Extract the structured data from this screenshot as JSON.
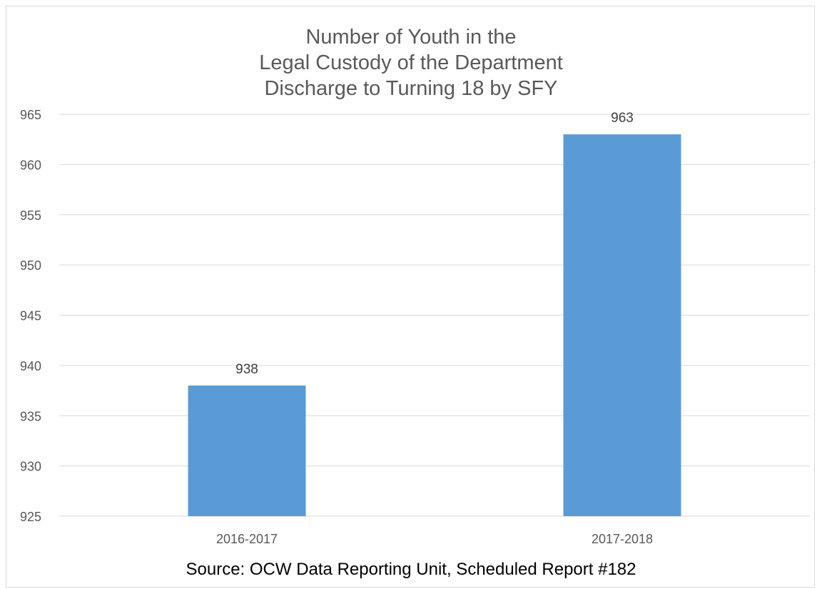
{
  "chart_data": {
    "type": "bar",
    "title": [
      "Number of Youth in the",
      "Legal Custody of the Department",
      "Discharge to Turning 18 by SFY"
    ],
    "categories": [
      "2016-2017",
      "2017-2018"
    ],
    "values": [
      938,
      963
    ],
    "data_labels": [
      "938",
      "963"
    ],
    "ylim": [
      925,
      965
    ],
    "yticks": [
      925,
      930,
      935,
      940,
      945,
      950,
      955,
      960,
      965
    ],
    "ytick_labels": [
      "925",
      "930",
      "935",
      "940",
      "945",
      "950",
      "955",
      "960",
      "965"
    ],
    "xlabel": "",
    "ylabel": "",
    "grid": true,
    "legend": "none",
    "bar_color": "#5b9bd5",
    "grid_color": "#d9d9d9"
  },
  "footer": {
    "source": "Source: OCW Data Reporting Unit, Scheduled Report #182"
  }
}
